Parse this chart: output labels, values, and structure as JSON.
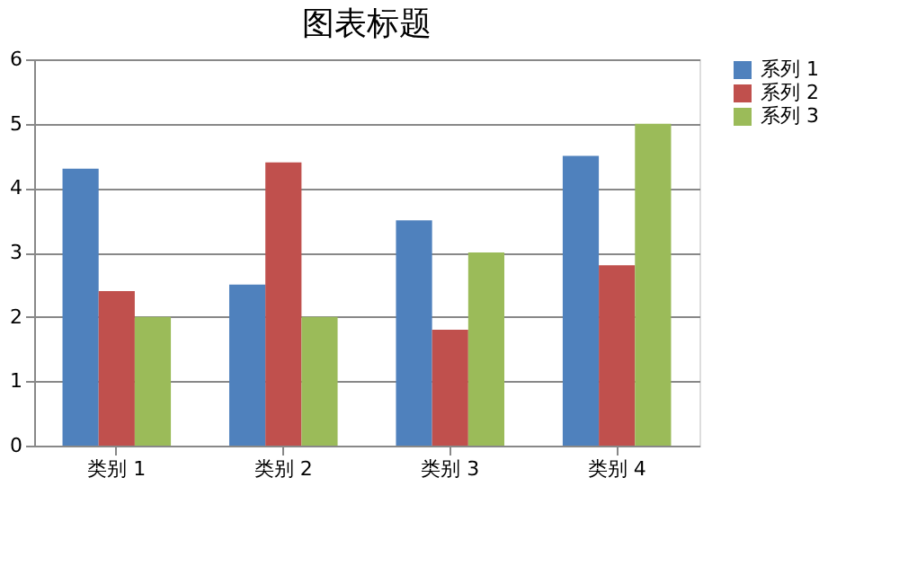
{
  "chart_data": {
    "type": "bar",
    "title": "图表标题",
    "categories": [
      "类别 1",
      "类别 2",
      "类别 3",
      "类别 4"
    ],
    "series": [
      {
        "name": "系列 1",
        "color": "#4f81bd",
        "values": [
          4.3,
          2.5,
          3.5,
          4.5
        ]
      },
      {
        "name": "系列 2",
        "color": "#c0504d",
        "values": [
          2.4,
          4.4,
          1.8,
          2.8
        ]
      },
      {
        "name": "系列 3",
        "color": "#9bbb59",
        "values": [
          2,
          2,
          3,
          5
        ]
      }
    ],
    "ylim": [
      0,
      6
    ],
    "yticks": [
      0,
      1,
      2,
      3,
      4,
      5,
      6
    ],
    "grid": "y",
    "legend": "right"
  }
}
